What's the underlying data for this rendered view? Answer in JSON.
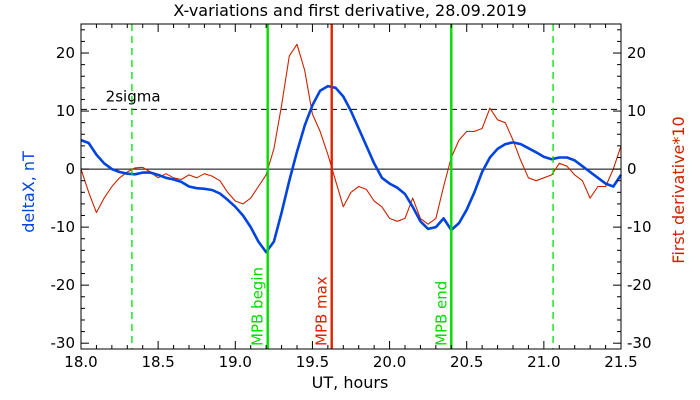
{
  "chart_data": {
    "type": "line",
    "title": "X-variations and first derivative, 28.09.2019",
    "xlabel": "UT, hours",
    "ylabel_left": "deltaX, nT",
    "ylabel_right": "First derivative*10",
    "xlim": [
      18.0,
      21.5
    ],
    "ylim": [
      -31,
      25
    ],
    "x_ticks": [
      "18.0",
      "18.5",
      "19.0",
      "19.5",
      "20.0",
      "20.5",
      "21.0",
      "21.5"
    ],
    "y_ticks": [
      "-30",
      "-20",
      "-10",
      "0",
      "10",
      "20"
    ],
    "grid": false,
    "threshold": {
      "label": "2sigma",
      "value": 10.3
    },
    "zero_line": 0,
    "markers": [
      {
        "label": "MPB begin",
        "x": 19.21,
        "color": "#00dd00",
        "style": "solid"
      },
      {
        "label": "MPB max",
        "x": 19.625,
        "color": "#dd2200",
        "style": "solid"
      },
      {
        "label": "MPB end",
        "x": 20.4,
        "color": "#00dd00",
        "style": "solid"
      },
      {
        "label": "",
        "x": 18.33,
        "color": "#00dd00",
        "style": "dashed"
      },
      {
        "label": "",
        "x": 21.06,
        "color": "#00dd00",
        "style": "dashed"
      }
    ],
    "series": [
      {
        "name": "deltaX, nT",
        "color": "#0044dd",
        "x": [
          18.0,
          18.05,
          18.1,
          18.15,
          18.2,
          18.25,
          18.3,
          18.35,
          18.4,
          18.45,
          18.5,
          18.55,
          18.6,
          18.65,
          18.7,
          18.75,
          18.8,
          18.85,
          18.9,
          18.95,
          19.0,
          19.05,
          19.1,
          19.15,
          19.2,
          19.25,
          19.3,
          19.35,
          19.4,
          19.45,
          19.5,
          19.55,
          19.6,
          19.65,
          19.7,
          19.75,
          19.8,
          19.85,
          19.9,
          19.95,
          20.0,
          20.05,
          20.1,
          20.15,
          20.2,
          20.25,
          20.3,
          20.35,
          20.4,
          20.45,
          20.5,
          20.55,
          20.6,
          20.65,
          20.7,
          20.75,
          20.8,
          20.85,
          20.9,
          20.95,
          21.0,
          21.05,
          21.1,
          21.15,
          21.2,
          21.25,
          21.3,
          21.35,
          21.4,
          21.45,
          21.5
        ],
        "y": [
          5.0,
          4.5,
          2.5,
          1.0,
          0.0,
          -0.5,
          -0.8,
          -0.9,
          -0.6,
          -0.6,
          -1.0,
          -1.5,
          -1.8,
          -2.2,
          -3.0,
          -3.3,
          -3.4,
          -3.6,
          -4.2,
          -5.3,
          -6.5,
          -8.0,
          -10.0,
          -12.5,
          -14.3,
          -12.5,
          -7.5,
          -2.0,
          3.0,
          7.5,
          11.0,
          13.5,
          14.3,
          14.0,
          12.5,
          10.0,
          7.0,
          4.0,
          1.0,
          -1.5,
          -2.5,
          -3.2,
          -4.3,
          -6.5,
          -9.0,
          -10.3,
          -10.0,
          -8.5,
          -10.5,
          -9.3,
          -7.0,
          -4.0,
          -0.5,
          2.0,
          3.5,
          4.3,
          4.6,
          4.3,
          3.6,
          2.9,
          2.1,
          1.7,
          2.0,
          2.0,
          1.5,
          0.5,
          -0.5,
          -1.5,
          -2.5,
          -3.0,
          -1.0
        ]
      },
      {
        "name": "First derivative*10",
        "color": "#cc2200",
        "x": [
          18.0,
          18.05,
          18.1,
          18.15,
          18.2,
          18.25,
          18.3,
          18.35,
          18.4,
          18.45,
          18.5,
          18.55,
          18.6,
          18.65,
          18.7,
          18.75,
          18.8,
          18.85,
          18.9,
          18.95,
          19.0,
          19.05,
          19.1,
          19.15,
          19.2,
          19.25,
          19.3,
          19.35,
          19.4,
          19.45,
          19.5,
          19.55,
          19.6,
          19.65,
          19.7,
          19.75,
          19.8,
          19.85,
          19.9,
          19.95,
          20.0,
          20.05,
          20.1,
          20.15,
          20.2,
          20.25,
          20.3,
          20.35,
          20.4,
          20.45,
          20.5,
          20.55,
          20.6,
          20.65,
          20.7,
          20.75,
          20.8,
          20.85,
          20.9,
          20.95,
          21.0,
          21.05,
          21.1,
          21.15,
          21.2,
          21.25,
          21.3,
          21.35,
          21.4,
          21.45,
          21.5
        ],
        "y": [
          0.0,
          -4.0,
          -7.5,
          -5.0,
          -3.0,
          -1.5,
          -0.5,
          0.2,
          0.3,
          -0.5,
          -1.5,
          -0.8,
          -1.5,
          -1.8,
          -1.0,
          -1.5,
          -0.8,
          -1.2,
          -2.0,
          -4.0,
          -5.5,
          -6.0,
          -5.0,
          -3.0,
          -1.0,
          3.5,
          11.0,
          19.5,
          21.5,
          17.0,
          9.5,
          6.5,
          2.5,
          -2.0,
          -6.5,
          -4.0,
          -3.0,
          -3.5,
          -5.5,
          -6.5,
          -8.5,
          -9.0,
          -8.5,
          -5.0,
          -8.5,
          -9.5,
          -8.5,
          -3.0,
          2.0,
          5.0,
          6.5,
          6.5,
          7.0,
          10.5,
          8.5,
          8.0,
          5.0,
          1.5,
          -1.5,
          -2.0,
          -1.5,
          -1.0,
          1.0,
          0.5,
          -1.0,
          -2.0,
          -5.0,
          -3.0,
          -3.0,
          0.0,
          4.0
        ]
      }
    ]
  }
}
